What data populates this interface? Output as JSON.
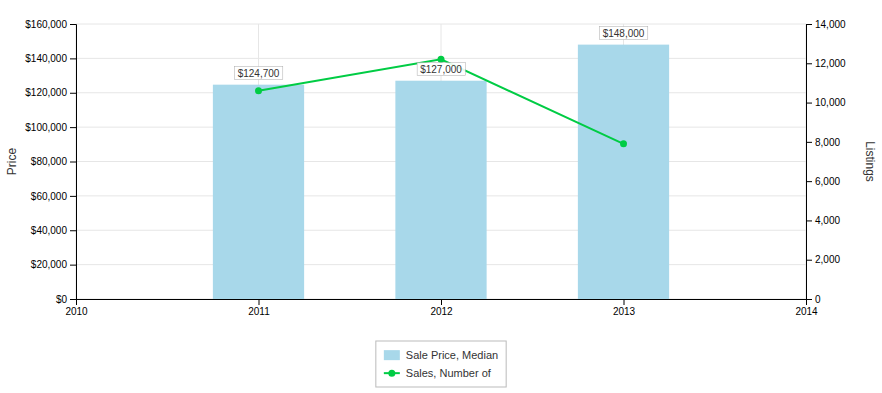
{
  "chart_data": {
    "type": "bar",
    "x": [
      2011,
      2012,
      2013
    ],
    "xlim": [
      2010,
      2014
    ],
    "xticks": [
      2010,
      2011,
      2012,
      2013,
      2014
    ],
    "ylabel": "Price",
    "y2label": "Listings",
    "ylim": [
      0,
      160000
    ],
    "yticks": [
      {
        "value": 0,
        "label": "$0"
      },
      {
        "value": 20000,
        "label": "$20,000"
      },
      {
        "value": 40000,
        "label": "$40,000"
      },
      {
        "value": 60000,
        "label": "$60,000"
      },
      {
        "value": 80000,
        "label": "$80,000"
      },
      {
        "value": 100000,
        "label": "$100,000"
      },
      {
        "value": 120000,
        "label": "$120,000"
      },
      {
        "value": 140000,
        "label": "$140,000"
      },
      {
        "value": 160000,
        "label": "$160,000"
      }
    ],
    "y2lim": [
      0,
      14000
    ],
    "y2ticks": [
      0,
      {
        "value": 2000,
        "label": "2,000"
      },
      {
        "value": 4000,
        "label": "4,000"
      },
      {
        "value": 6000,
        "label": "6,000"
      },
      {
        "value": 8000,
        "label": "8,000"
      },
      {
        "value": 10000,
        "label": "10,000"
      },
      {
        "value": 12000,
        "label": "12,000"
      },
      {
        "value": 14000,
        "label": "14,000"
      }
    ],
    "grid": true,
    "legend": "bottom",
    "series": [
      {
        "name": "Sale Price, Median",
        "type": "bar",
        "color": "#a8d8ea",
        "values": [
          124700,
          127000,
          148000
        ],
        "data_labels": true,
        "value_labels": [
          "$124,700",
          "$127,000",
          "$148,000"
        ]
      },
      {
        "name": "Sales, Number of",
        "type": "line",
        "axis": "y2",
        "color": "#00cc44",
        "marker": "circle",
        "values": [
          10600,
          12200,
          7900
        ]
      }
    ]
  }
}
